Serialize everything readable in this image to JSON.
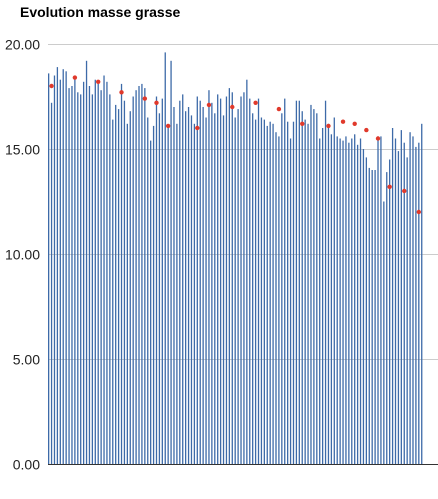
{
  "chart_data": {
    "type": "bar",
    "title": "Evolution masse grasse",
    "xlabel": "",
    "ylabel": "",
    "ylim": [
      0,
      20
    ],
    "y_ticks": [
      {
        "value": 0,
        "label": "0.00"
      },
      {
        "value": 5,
        "label": "5.00"
      },
      {
        "value": 10,
        "label": "10.00"
      },
      {
        "value": 15,
        "label": "15.00"
      },
      {
        "value": 20,
        "label": "20.00"
      }
    ],
    "grid": true,
    "legend": "none",
    "colors": {
      "bars": "#3d6aa8",
      "points": "#e0392b",
      "grid": "#cccccc",
      "axis": "#333333"
    },
    "series": [
      {
        "type": "bar",
        "values": [
          18.6,
          17.2,
          18.5,
          18.9,
          18.3,
          18.8,
          18.7,
          17.9,
          18.0,
          18.5,
          17.7,
          17.6,
          18.2,
          19.2,
          18.0,
          17.6,
          18.3,
          18.1,
          17.8,
          18.5,
          18.2,
          17.6,
          16.4,
          17.1,
          16.9,
          18.1,
          17.3,
          16.2,
          16.8,
          17.5,
          17.8,
          18.0,
          18.1,
          17.9,
          16.5,
          15.4,
          16.1,
          17.5,
          16.7,
          17.4,
          19.6,
          16.0,
          19.2,
          17.0,
          16.2,
          17.3,
          17.6,
          16.8,
          17.0,
          16.6,
          16.2,
          17.5,
          17.3,
          17.0,
          16.5,
          17.8,
          17.2,
          16.7,
          17.6,
          17.4,
          16.6,
          17.5,
          17.9,
          17.7,
          16.5,
          16.9,
          17.5,
          17.7,
          18.3,
          17.4,
          16.7,
          16.4,
          17.4,
          16.5,
          16.4,
          16.1,
          16.3,
          16.2,
          15.8,
          15.6,
          16.7,
          17.4,
          16.3,
          15.5,
          16.3,
          17.3,
          17.3,
          16.8,
          16.4,
          16.2,
          17.1,
          16.9,
          16.7,
          15.5,
          16.0,
          17.3,
          16.2,
          15.7,
          16.5,
          15.6,
          15.5,
          15.4,
          15.6,
          15.3,
          15.5,
          15.7,
          15.2,
          15.5,
          15.0,
          14.6,
          14.1,
          14.0,
          14.0,
          15.6,
          15.6,
          12.5,
          13.9,
          14.5,
          16.0,
          15.5,
          14.9,
          15.9,
          15.3,
          14.6,
          15.8,
          15.6,
          15.1,
          15.3,
          16.2
        ]
      },
      {
        "type": "scatter",
        "points": [
          {
            "bar": 1,
            "value": 18.0
          },
          {
            "bar": 9,
            "value": 18.4
          },
          {
            "bar": 17,
            "value": 18.2
          },
          {
            "bar": 25,
            "value": 17.7
          },
          {
            "bar": 33,
            "value": 17.4
          },
          {
            "bar": 37,
            "value": 17.2
          },
          {
            "bar": 41,
            "value": 16.1
          },
          {
            "bar": 51,
            "value": 16.0
          },
          {
            "bar": 55,
            "value": 17.1
          },
          {
            "bar": 63,
            "value": 17.0
          },
          {
            "bar": 71,
            "value": 17.2
          },
          {
            "bar": 79,
            "value": 16.9
          },
          {
            "bar": 87,
            "value": 16.2
          },
          {
            "bar": 96,
            "value": 16.1
          },
          {
            "bar": 101,
            "value": 16.3
          },
          {
            "bar": 105,
            "value": 16.2
          },
          {
            "bar": 109,
            "value": 15.9
          },
          {
            "bar": 113,
            "value": 15.5
          },
          {
            "bar": 117,
            "value": 13.2
          },
          {
            "bar": 122,
            "value": 13.0
          },
          {
            "bar": 127,
            "value": 12.0
          }
        ]
      }
    ]
  }
}
